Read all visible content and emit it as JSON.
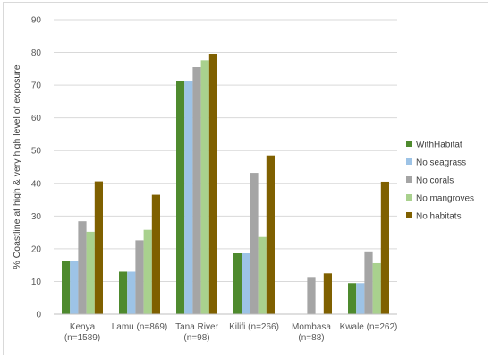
{
  "chart_data": {
    "type": "bar",
    "title": "",
    "xlabel": "",
    "ylabel": "% Coastline at high & very high level of exposure",
    "ylim": [
      0,
      90
    ],
    "yticks": [
      0,
      10,
      20,
      30,
      40,
      50,
      60,
      70,
      80,
      90
    ],
    "grid": true,
    "legend_position": "right",
    "categories": [
      [
        "Kenya",
        "(n=1589)"
      ],
      [
        "Lamu (n=869)"
      ],
      [
        "Tana River",
        "(n=98)"
      ],
      [
        "Kilifi (n=266)"
      ],
      [
        "Mombasa",
        "(n=88)"
      ],
      [
        "Kwale (n=262)"
      ]
    ],
    "series": [
      {
        "name": "WithHabitat",
        "color": "#4e8a2e",
        "values": [
          16.2,
          13.0,
          71.4,
          18.6,
          null,
          9.5
        ]
      },
      {
        "name": "No seagrass",
        "color": "#9dc3e6",
        "values": [
          16.2,
          13.0,
          71.4,
          18.6,
          null,
          9.5
        ]
      },
      {
        "name": "No corals",
        "color": "#a5a5a5",
        "values": [
          28.4,
          22.6,
          75.5,
          43.2,
          11.4,
          19.2
        ]
      },
      {
        "name": "No mangroves",
        "color": "#a9d18e",
        "values": [
          25.2,
          25.8,
          77.6,
          23.6,
          null,
          15.6
        ]
      },
      {
        "name": "No habitats",
        "color": "#7f6000",
        "values": [
          40.6,
          36.5,
          79.6,
          48.5,
          12.5,
          40.5
        ]
      }
    ]
  }
}
